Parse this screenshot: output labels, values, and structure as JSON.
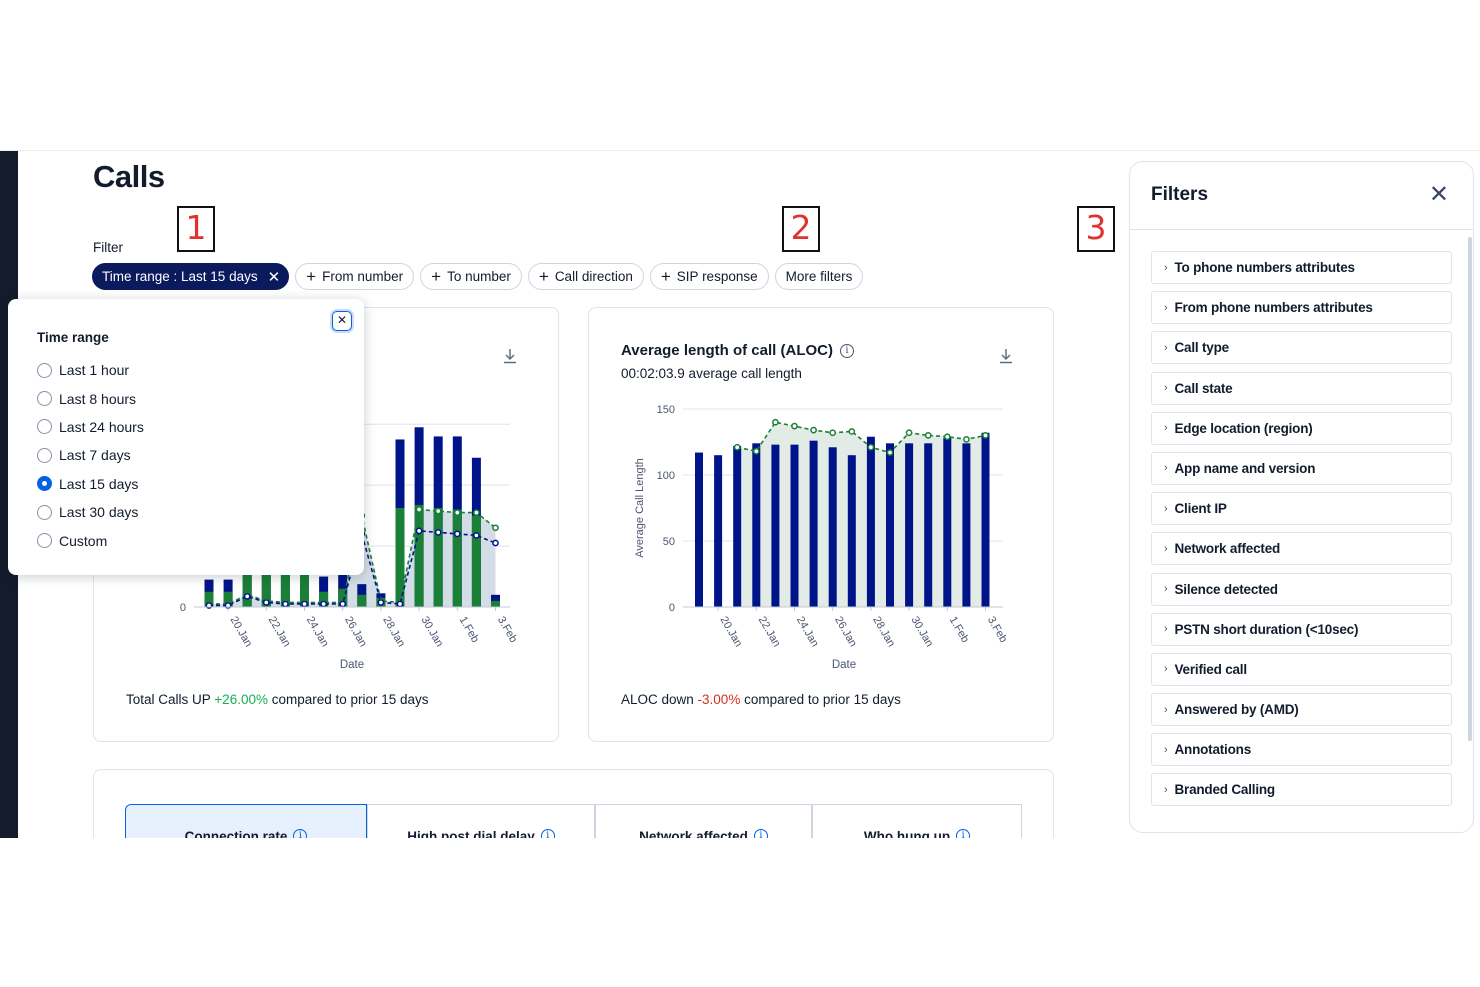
{
  "page": {
    "title": "Calls",
    "filter_label": "Filter"
  },
  "callouts": [
    "1",
    "2",
    "3"
  ],
  "filter_chips": {
    "active": {
      "label": "Time range : Last 15 days",
      "remove_icon": "close-icon"
    },
    "from_number": "From number",
    "to_number": "To number",
    "call_direction": "Call direction",
    "sip_response": "SIP response",
    "more_filters": "More filters",
    "add_icon": "+"
  },
  "time_range_popover": {
    "heading": "Time range",
    "options": [
      "Last 1 hour",
      "Last 8 hours",
      "Last 24 hours",
      "Last 7 days",
      "Last 15 days",
      "Last 30 days",
      "Custom"
    ],
    "selected": "Last 15 days"
  },
  "total_calls_card": {
    "footer_prefix": "Total Calls UP ",
    "footer_change": "+26.00%",
    "footer_suffix": " compared to prior 15 days"
  },
  "aloc_card": {
    "title": "Average length of call (ALOC)",
    "subtitle": "00:02:03.9 average call length",
    "footer_prefix": "ALOC down ",
    "footer_change": "-3.00%",
    "footer_suffix": " compared to prior 15 days"
  },
  "tabs": [
    {
      "label": "Connection rate"
    },
    {
      "label": "High post dial delay"
    },
    {
      "label": "Network affected"
    },
    {
      "label": "Who hung up"
    }
  ],
  "filters_panel": {
    "title": "Filters",
    "items": [
      "To phone numbers attributes",
      "From phone numbers attributes",
      "Call type",
      "Call state",
      "Edge location (region)",
      "App name and version",
      "Client IP",
      "Network affected",
      "Silence detected",
      "PSTN short duration (<10sec)",
      "Verified call",
      "Answered by (AMD)",
      "Annotations",
      "Branded Calling"
    ]
  },
  "colors": {
    "navy": "#001489",
    "green": "#1a7f37",
    "accent": "#0263e0",
    "up": "#14b053",
    "down": "#d6301f"
  },
  "chart_data": [
    {
      "type": "bar",
      "xlabel": "Date",
      "x_ticks": [
        "20.Jan",
        "22.Jan",
        "24.Jan",
        "26.Jan",
        "28.Jan",
        "30.Jan",
        "1.Feb",
        "3.Feb"
      ],
      "y_ticks_visible": [
        "0"
      ],
      "visible_x_range": [
        "18.Jan",
        "3.Feb"
      ],
      "series": [
        {
          "values": [
            18,
            18,
            40,
            40,
            40,
            40,
            20,
            22,
            15,
            9,
            110,
            118,
            112,
            112,
            98,
            8
          ]
        },
        {
          "values": [
            10,
            10,
            40,
            40,
            40,
            40,
            10,
            12,
            8,
            6,
            65,
            67,
            65,
            64,
            60,
            4
          ]
        }
      ],
      "line_series": [
        {
          "values": [
            2,
            2,
            8,
            4,
            3,
            3,
            3,
            3,
            60,
            4,
            3,
            64,
            63,
            62,
            62,
            52
          ]
        },
        {
          "values": [
            1,
            1,
            7,
            3,
            2,
            2,
            2,
            2,
            48,
            3,
            2,
            50,
            49,
            48,
            47,
            42
          ]
        }
      ]
    },
    {
      "type": "bar",
      "title": "Average length of call (ALOC)",
      "xlabel": "Date",
      "ylabel": "Average Call Length",
      "ylim": [
        0,
        150
      ],
      "y_ticks": [
        0,
        50,
        100,
        150
      ],
      "x_ticks": [
        "20.Jan",
        "22.Jan",
        "24.Jan",
        "26.Jan",
        "28.Jan",
        "30.Jan",
        "1.Feb",
        "3.Feb"
      ],
      "categories": [
        "19.Jan",
        "20.Jan",
        "21.Jan",
        "22.Jan",
        "23.Jan",
        "24.Jan",
        "25.Jan",
        "26.Jan",
        "27.Jan",
        "28.Jan",
        "29.Jan",
        "30.Jan",
        "31.Jan",
        "1.Feb",
        "2.Feb",
        "3.Feb"
      ],
      "series": [
        {
          "values": [
            117,
            115,
            122,
            124,
            123,
            123,
            126,
            121,
            115,
            129,
            124,
            124,
            124,
            128,
            124,
            132
          ]
        }
      ],
      "line_series": [
        {
          "values": [
            null,
            null,
            121,
            118,
            140,
            137,
            134,
            132,
            133,
            121,
            117,
            132,
            130,
            129,
            127,
            130
          ]
        }
      ]
    }
  ]
}
